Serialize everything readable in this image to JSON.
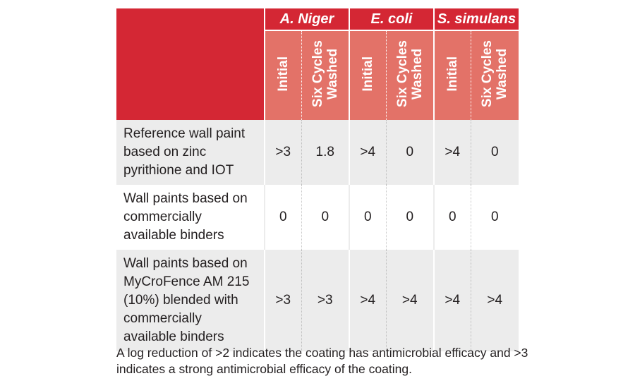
{
  "table": {
    "organisms": [
      "A. Niger",
      "E. coli",
      "S. simulans"
    ],
    "subheaders": [
      "Initial",
      "Six Cycles Washed"
    ],
    "rows": [
      {
        "label": "Reference wall paint based on zinc pyrithione and IOT",
        "values": [
          ">3",
          "1.8",
          ">4",
          "0",
          ">4",
          "0"
        ]
      },
      {
        "label": "Wall paints based on commercially available binders",
        "values": [
          "0",
          "0",
          "0",
          "0",
          "0",
          "0"
        ]
      },
      {
        "label": "Wall paints based on MyCroFence AM 215 (10%) blended with commercially available binders",
        "values": [
          ">3",
          ">3",
          ">4",
          ">4",
          ">4",
          ">4"
        ]
      }
    ]
  },
  "footnote": "A log reduction of >2 indicates the coating has antimicrobial efficacy and >3 indicates a strong antimicrobial efficacy of the coating.",
  "colors": {
    "header_red": "#d42734",
    "subheader_salmon": "#e37268",
    "row_grey": "#ececec"
  }
}
